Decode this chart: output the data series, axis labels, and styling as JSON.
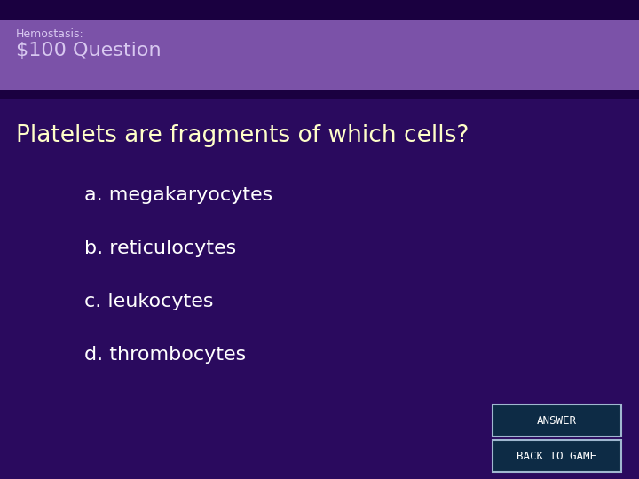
{
  "bg_color": "#2a0a5e",
  "top_strip_color": "#1a0040",
  "header_color": "#7b52a8",
  "header_subtitle": "Hemostasis:",
  "header_title": "$100 Question",
  "question": "Platelets are fragments of which cells?",
  "answers": [
    "a. megakaryocytes",
    "b. reticulocytes",
    "c. leukocytes",
    "d. thrombocytes"
  ],
  "question_color": "#ffffc8",
  "answer_color": "#ffffff",
  "header_text_color": "#d8c8f0",
  "button1_text": "ANSWER",
  "button2_text": "BACK TO GAME",
  "button_bg": "#0d2b45",
  "button_border": "#a0b8d0",
  "button_text_color": "#ffffff",
  "fig_width": 7.2,
  "fig_height": 5.4,
  "dpi": 100
}
